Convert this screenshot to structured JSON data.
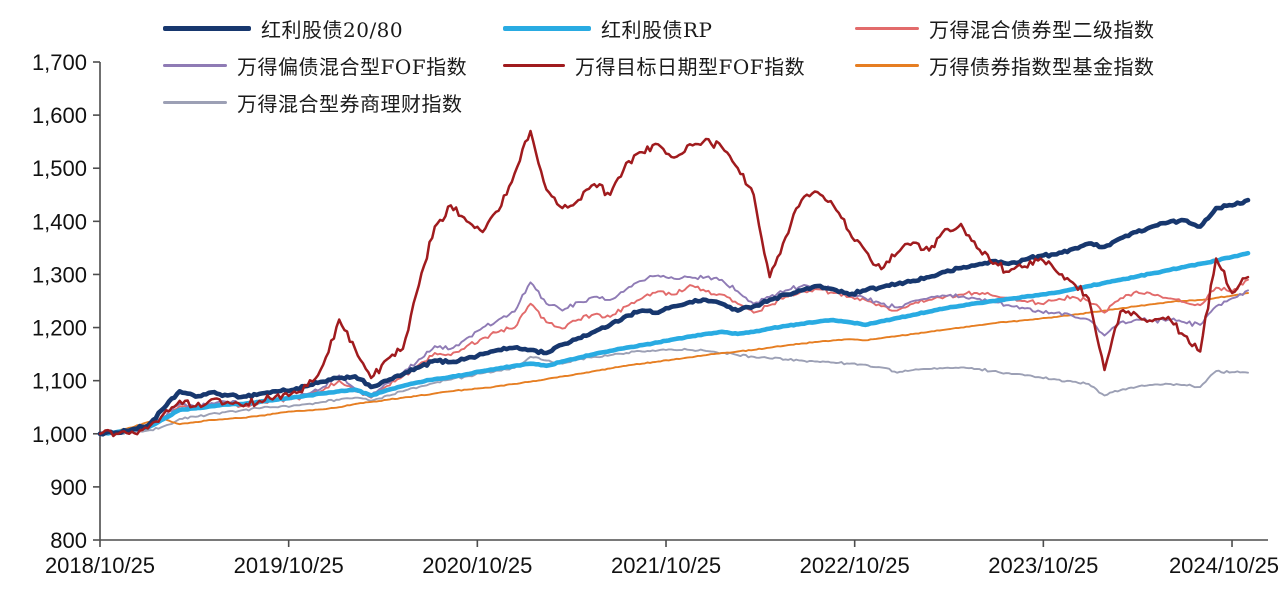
{
  "chart_data": {
    "type": "line",
    "title": "",
    "xlabel": "",
    "ylabel": "",
    "grid": false,
    "legend_position": "top",
    "ylim": [
      800,
      1700
    ],
    "y_tick_values": [
      800,
      900,
      1000,
      1100,
      1200,
      1300,
      1400,
      1500,
      1600,
      1700
    ],
    "y_tick_labels": [
      "800",
      "900",
      "1,000",
      "1,100",
      "1,200",
      "1,300",
      "1,400",
      "1,500",
      "1,600",
      "1,700"
    ],
    "x_start": "2018/10/25",
    "x_end": "2024/10/25",
    "frequency": "monthly",
    "x_tick_labels": [
      "2018/10/25",
      "2019/10/25",
      "2020/10/25",
      "2021/10/25",
      "2022/10/25",
      "2023/10/25",
      "2024/10/25"
    ],
    "x_tick_month_index": [
      0,
      12,
      24,
      36,
      48,
      60,
      72
    ],
    "series": [
      {
        "name": "红利股债20/80",
        "color": "#17376E",
        "weight": "thick",
        "values": [
          1000,
          1002,
          1008,
          1015,
          1048,
          1080,
          1070,
          1078,
          1072,
          1070,
          1075,
          1080,
          1082,
          1090,
          1098,
          1105,
          1108,
          1088,
          1100,
          1112,
          1125,
          1138,
          1135,
          1142,
          1150,
          1158,
          1162,
          1158,
          1152,
          1168,
          1180,
          1192,
          1205,
          1222,
          1232,
          1228,
          1240,
          1248,
          1252,
          1245,
          1232,
          1240,
          1252,
          1262,
          1270,
          1278,
          1272,
          1262,
          1270,
          1276,
          1282,
          1288,
          1295,
          1305,
          1312,
          1318,
          1325,
          1320,
          1328,
          1335,
          1338,
          1348,
          1358,
          1352,
          1368,
          1380,
          1390,
          1398,
          1402,
          1390,
          1425,
          1430,
          1440
        ]
      },
      {
        "name": "红利股债RP",
        "color": "#29ABE2",
        "weight": "thick",
        "values": [
          1000,
          1003,
          1007,
          1012,
          1028,
          1045,
          1048,
          1052,
          1055,
          1056,
          1060,
          1064,
          1068,
          1072,
          1076,
          1080,
          1083,
          1072,
          1082,
          1090,
          1097,
          1103,
          1107,
          1112,
          1118,
          1123,
          1128,
          1132,
          1128,
          1136,
          1143,
          1150,
          1156,
          1162,
          1167,
          1172,
          1178,
          1183,
          1188,
          1192,
          1188,
          1192,
          1198,
          1203,
          1207,
          1211,
          1214,
          1210,
          1205,
          1212,
          1218,
          1224,
          1230,
          1236,
          1241,
          1246,
          1250,
          1254,
          1258,
          1262,
          1266,
          1272,
          1278,
          1284,
          1290,
          1296,
          1302,
          1308,
          1314,
          1320,
          1326,
          1333,
          1340
        ]
      },
      {
        "name": "万得混合债券型二级指数",
        "color": "#E26B6B",
        "weight": "thin",
        "values": [
          1000,
          1002,
          1006,
          1010,
          1030,
          1052,
          1048,
          1056,
          1058,
          1052,
          1058,
          1062,
          1065,
          1072,
          1082,
          1100,
          1080,
          1068,
          1090,
          1108,
          1130,
          1152,
          1148,
          1165,
          1180,
          1192,
          1200,
          1245,
          1210,
          1198,
          1215,
          1225,
          1220,
          1240,
          1255,
          1268,
          1262,
          1280,
          1268,
          1262,
          1245,
          1228,
          1242,
          1258,
          1268,
          1272,
          1265,
          1258,
          1252,
          1240,
          1232,
          1245,
          1252,
          1258,
          1262,
          1265,
          1260,
          1255,
          1250,
          1245,
          1252,
          1258,
          1250,
          1228,
          1255,
          1268,
          1262,
          1255,
          1248,
          1242,
          1275,
          1268,
          1290
        ]
      },
      {
        "name": "万得偏债混合型FOF指数",
        "color": "#8F7BB5",
        "weight": "thin",
        "values": [
          1000,
          1002,
          1005,
          1010,
          1032,
          1056,
          1050,
          1058,
          1060,
          1055,
          1060,
          1065,
          1068,
          1075,
          1088,
          1110,
          1085,
          1072,
          1095,
          1115,
          1140,
          1165,
          1160,
          1180,
          1200,
          1215,
          1230,
          1285,
          1245,
          1232,
          1248,
          1258,
          1252,
          1272,
          1288,
          1298,
          1292,
          1295,
          1295,
          1290,
          1268,
          1245,
          1258,
          1270,
          1278,
          1280,
          1272,
          1262,
          1255,
          1245,
          1238,
          1250,
          1256,
          1260,
          1258,
          1254,
          1248,
          1242,
          1236,
          1230,
          1228,
          1222,
          1215,
          1185,
          1210,
          1215,
          1212,
          1215,
          1210,
          1205,
          1240,
          1255,
          1270
        ]
      },
      {
        "name": "万得目标日期型FOF指数",
        "color": "#A01B1E",
        "weight": "medium",
        "values": [
          1000,
          1000,
          1004,
          1010,
          1038,
          1062,
          1052,
          1065,
          1060,
          1052,
          1062,
          1070,
          1075,
          1090,
          1130,
          1215,
          1160,
          1105,
          1140,
          1160,
          1280,
          1390,
          1430,
          1400,
          1380,
          1420,
          1490,
          1570,
          1460,
          1425,
          1440,
          1470,
          1450,
          1510,
          1530,
          1545,
          1520,
          1545,
          1555,
          1540,
          1500,
          1450,
          1295,
          1370,
          1440,
          1455,
          1430,
          1380,
          1345,
          1310,
          1340,
          1360,
          1345,
          1385,
          1395,
          1350,
          1320,
          1305,
          1315,
          1330,
          1305,
          1285,
          1255,
          1120,
          1230,
          1225,
          1212,
          1220,
          1185,
          1155,
          1330,
          1265,
          1295
        ]
      },
      {
        "name": "万得债券指数型基金指数",
        "color": "#E67E22",
        "weight": "thin",
        "values": [
          1000,
          1005,
          1012,
          1022,
          1028,
          1018,
          1022,
          1026,
          1028,
          1030,
          1034,
          1038,
          1042,
          1044,
          1046,
          1050,
          1056,
          1060,
          1064,
          1068,
          1072,
          1076,
          1080,
          1083,
          1086,
          1090,
          1094,
          1098,
          1103,
          1108,
          1113,
          1118,
          1123,
          1128,
          1132,
          1136,
          1140,
          1144,
          1148,
          1152,
          1155,
          1158,
          1162,
          1166,
          1170,
          1173,
          1176,
          1178,
          1176,
          1180,
          1184,
          1188,
          1192,
          1196,
          1200,
          1204,
          1208,
          1211,
          1214,
          1217,
          1220,
          1224,
          1228,
          1232,
          1236,
          1240,
          1244,
          1248,
          1250,
          1252,
          1256,
          1260,
          1265
        ]
      },
      {
        "name": "万得混合型券商理财指数",
        "color": "#9CA0B5",
        "weight": "thin",
        "values": [
          1000,
          1001,
          1003,
          1006,
          1014,
          1028,
          1032,
          1038,
          1042,
          1045,
          1048,
          1050,
          1052,
          1056,
          1060,
          1064,
          1068,
          1062,
          1072,
          1080,
          1088,
          1096,
          1102,
          1108,
          1114,
          1119,
          1124,
          1145,
          1138,
          1132,
          1140,
          1145,
          1148,
          1152,
          1155,
          1157,
          1158,
          1158,
          1156,
          1152,
          1148,
          1145,
          1142,
          1140,
          1138,
          1136,
          1134,
          1132,
          1130,
          1125,
          1115,
          1120,
          1122,
          1124,
          1125,
          1122,
          1118,
          1114,
          1110,
          1106,
          1102,
          1098,
          1094,
          1072,
          1082,
          1088,
          1092,
          1094,
          1092,
          1088,
          1118,
          1116,
          1115
        ]
      }
    ]
  }
}
